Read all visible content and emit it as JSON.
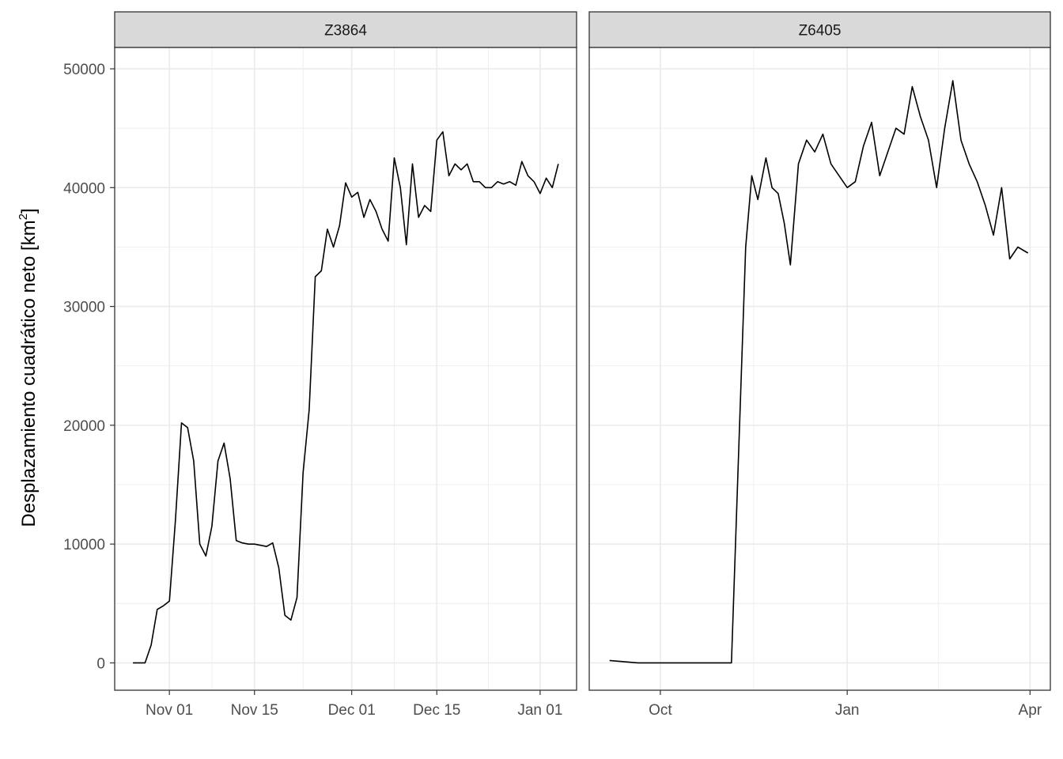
{
  "chart_data": {
    "type": "line",
    "ylabel": "Desplazamiento cuadrático neto",
    "ylabel_unit": "km",
    "ylabel_unit_exponent": "2",
    "ylim": [
      -2300,
      51800
    ],
    "yticks": [
      0,
      10000,
      20000,
      30000,
      40000,
      50000
    ],
    "ytick_labels": [
      "0",
      "10000",
      "20000",
      "30000",
      "40000",
      "50000"
    ],
    "grid": true,
    "theme": "bw",
    "line_color": "#000000",
    "panels": [
      {
        "strip": "Z3864",
        "xlim": [
          "2021-10-23",
          "2022-01-07"
        ],
        "xticks": [
          {
            "date": "2021-11-01",
            "label": "Nov 01"
          },
          {
            "date": "2021-11-15",
            "label": "Nov 15"
          },
          {
            "date": "2021-12-01",
            "label": "Dec 01"
          },
          {
            "date": "2021-12-15",
            "label": "Dec 15"
          },
          {
            "date": "2022-01-01",
            "label": "Jan 01"
          }
        ],
        "series": [
          {
            "x": [
              "2021-10-26",
              "2021-10-28",
              "2021-10-29",
              "2021-10-30",
              "2021-10-31",
              "2021-11-01",
              "2021-11-02",
              "2021-11-03",
              "2021-11-04",
              "2021-11-05",
              "2021-11-06",
              "2021-11-07",
              "2021-11-08",
              "2021-11-09",
              "2021-11-10",
              "2021-11-11",
              "2021-11-12",
              "2021-11-13",
              "2021-11-14",
              "2021-11-15",
              "2021-11-16",
              "2021-11-17",
              "2021-11-18",
              "2021-11-19",
              "2021-11-20",
              "2021-11-21",
              "2021-11-22",
              "2021-11-23",
              "2021-11-24",
              "2021-11-25",
              "2021-11-26",
              "2021-11-27",
              "2021-11-28",
              "2021-11-29",
              "2021-11-30",
              "2021-12-01",
              "2021-12-02",
              "2021-12-03",
              "2021-12-04",
              "2021-12-05",
              "2021-12-06",
              "2021-12-07",
              "2021-12-08",
              "2021-12-09",
              "2021-12-10",
              "2021-12-11",
              "2021-12-12",
              "2021-12-13",
              "2021-12-14",
              "2021-12-15",
              "2021-12-16",
              "2021-12-17",
              "2021-12-18",
              "2021-12-19",
              "2021-12-20",
              "2021-12-21",
              "2021-12-22",
              "2021-12-23",
              "2021-12-24",
              "2021-12-25",
              "2021-12-26",
              "2021-12-27",
              "2021-12-28",
              "2021-12-29",
              "2021-12-30",
              "2021-12-31",
              "2022-01-01",
              "2022-01-02",
              "2022-01-03",
              "2022-01-04"
            ],
            "values": [
              0,
              0,
              1500,
              4500,
              4800,
              5200,
              12000,
              20200,
              19800,
              17000,
              10000,
              9000,
              11500,
              17000,
              18500,
              15500,
              10300,
              10100,
              10000,
              10000,
              9900,
              9800,
              10100,
              8000,
              4000,
              3600,
              5500,
              16000,
              21300,
              32500,
              33000,
              36500,
              35000,
              36800,
              40400,
              39200,
              39600,
              37500,
              39000,
              38000,
              36500,
              35500,
              42500,
              40000,
              35200,
              42000,
              37500,
              38500,
              38000,
              44000,
              44700,
              41000,
              42000,
              41500,
              42000,
              40500,
              40500,
              40000,
              40000,
              40500,
              40300,
              40500,
              40200,
              42200,
              41000,
              40500,
              39500,
              40800,
              40000,
              42000
            ]
          }
        ]
      },
      {
        "strip": "Z6405",
        "xlim": [
          "2021-08-27",
          "2022-04-11"
        ],
        "xticks": [
          {
            "date": "2021-10-01",
            "label": "Oct"
          },
          {
            "date": "2022-01-01",
            "label": "Jan"
          },
          {
            "date": "2022-04-01",
            "label": "Apr"
          }
        ],
        "series": [
          {
            "x": [
              "2021-09-06",
              "2021-09-20",
              "2021-10-01",
              "2021-10-20",
              "2021-11-05",
              "2021-11-08",
              "2021-11-12",
              "2021-11-15",
              "2021-11-18",
              "2021-11-22",
              "2021-11-25",
              "2021-11-28",
              "2021-12-01",
              "2021-12-04",
              "2021-12-08",
              "2021-12-12",
              "2021-12-16",
              "2021-12-20",
              "2021-12-24",
              "2021-12-28",
              "2022-01-01",
              "2022-01-05",
              "2022-01-09",
              "2022-01-13",
              "2022-01-17",
              "2022-01-21",
              "2022-01-25",
              "2022-01-29",
              "2022-02-02",
              "2022-02-06",
              "2022-02-10",
              "2022-02-14",
              "2022-02-18",
              "2022-02-22",
              "2022-02-26",
              "2022-03-02",
              "2022-03-06",
              "2022-03-10",
              "2022-03-14",
              "2022-03-18",
              "2022-03-22",
              "2022-03-26",
              "2022-03-31"
            ],
            "values": [
              200,
              0,
              0,
              0,
              0,
              15000,
              35000,
              41000,
              39000,
              42500,
              40000,
              39500,
              37000,
              33500,
              42000,
              44000,
              43000,
              44500,
              42000,
              41000,
              40000,
              40500,
              43500,
              45500,
              41000,
              43000,
              45000,
              44500,
              48500,
              46000,
              44000,
              40000,
              45000,
              49000,
              44000,
              42000,
              40500,
              38500,
              36000,
              40000,
              34000,
              35000,
              34500
            ]
          }
        ]
      }
    ]
  }
}
